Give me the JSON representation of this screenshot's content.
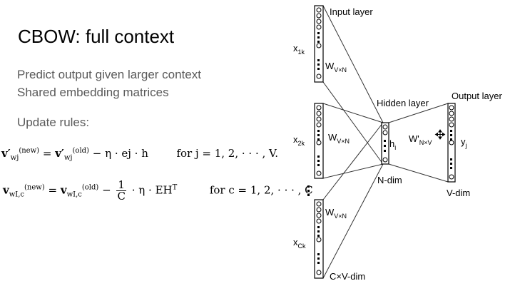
{
  "slide": {
    "title": "CBOW: full context",
    "bullets": [
      "Predict output given larger context",
      "Shared embedding matrices"
    ],
    "update_heading": "Update rules:",
    "eq1": {
      "lhs_v": "v′",
      "lhs_sub": "wj",
      "lhs_sup": "(new)",
      "rhs_sup": "(old)",
      "rest": "− η · ej · h",
      "for": "for j = 1, 2, · · · , V."
    },
    "eq2": {
      "lhs_v": "v",
      "lhs_sub": "wI,c",
      "lhs_sup": "(new)",
      "rhs_sup": "(old)",
      "frac_num": "1",
      "frac_den": "C",
      "rest": "· η · EH",
      "rest_sup": "T",
      "for": "for c = 1, 2, · · · , C"
    }
  },
  "diagram": {
    "input_layer": "Input layer",
    "hidden_layer": "Hidden layer",
    "output_layer": "Output layer",
    "x1": "x",
    "x1_sub": "1k",
    "x2": "x",
    "x2_sub": "2k",
    "xc": "x",
    "xc_sub": "Ck",
    "w": "W",
    "w_sub": "V×N",
    "w_prime": "W'",
    "w_prime_sub": "N×V",
    "h": "h",
    "h_sub": "i",
    "y": "y",
    "y_sub": "j",
    "n_dim": "N-dim",
    "v_dim": "V-dim",
    "cv_dim": "C×V-dim"
  }
}
